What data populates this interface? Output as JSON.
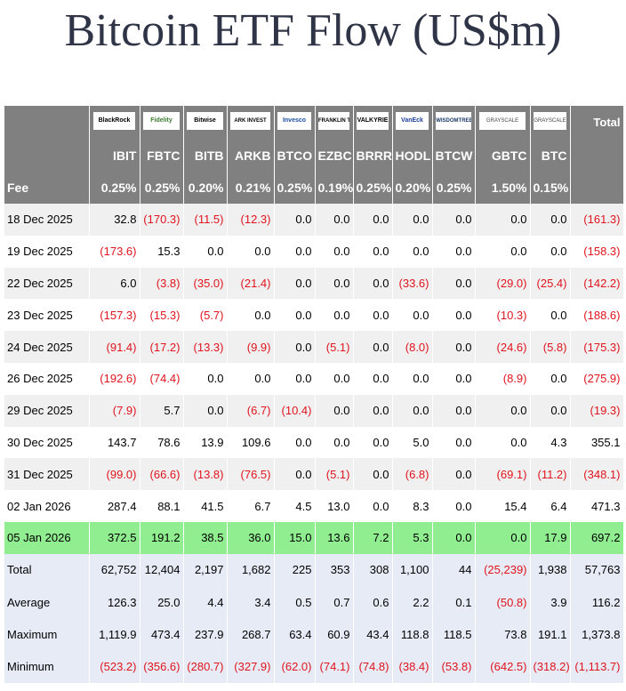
{
  "title": "Bitcoin ETF Flow (US$m)",
  "chart_data": {
    "type": "table",
    "title": "Bitcoin ETF Flow (US$m)",
    "issuers": [
      "BlackRock",
      "Fidelity",
      "Bitwise",
      "ARK INVEST",
      "Invesco",
      "FRANKLIN TEMPLETON",
      "VALKYRIE",
      "VanEck",
      "WISDOMTREE",
      "GRAYSCALE",
      "GRAYSCALE"
    ],
    "tickers": [
      "IBIT",
      "FBTC",
      "BITB",
      "ARKB",
      "BTCO",
      "EZBC",
      "BRRR",
      "HODL",
      "BTCW",
      "GBTC",
      "BTC"
    ],
    "total_label": "Total",
    "fee_label": "Fee",
    "fees": [
      "0.25%",
      "0.25%",
      "0.20%",
      "0.21%",
      "0.25%",
      "0.19%",
      "0.25%",
      "0.20%",
      "0.25%",
      "1.50%",
      "0.15%"
    ],
    "rows": [
      {
        "date": "18 Dec 2025",
        "values": [
          "32.8",
          "(170.3)",
          "(11.5)",
          "(12.3)",
          "0.0",
          "0.0",
          "0.0",
          "0.0",
          "0.0",
          "0.0",
          "0.0"
        ],
        "total": "(161.3)"
      },
      {
        "date": "19 Dec 2025",
        "values": [
          "(173.6)",
          "15.3",
          "0.0",
          "0.0",
          "0.0",
          "0.0",
          "0.0",
          "0.0",
          "0.0",
          "0.0",
          "0.0"
        ],
        "total": "(158.3)"
      },
      {
        "date": "22 Dec 2025",
        "values": [
          "6.0",
          "(3.8)",
          "(35.0)",
          "(21.4)",
          "0.0",
          "0.0",
          "0.0",
          "(33.6)",
          "0.0",
          "(29.0)",
          "(25.4)"
        ],
        "total": "(142.2)"
      },
      {
        "date": "23 Dec 2025",
        "values": [
          "(157.3)",
          "(15.3)",
          "(5.7)",
          "0.0",
          "0.0",
          "0.0",
          "0.0",
          "0.0",
          "0.0",
          "(10.3)",
          "0.0"
        ],
        "total": "(188.6)"
      },
      {
        "date": "24 Dec 2025",
        "values": [
          "(91.4)",
          "(17.2)",
          "(13.3)",
          "(9.9)",
          "0.0",
          "(5.1)",
          "0.0",
          "(8.0)",
          "0.0",
          "(24.6)",
          "(5.8)"
        ],
        "total": "(175.3)"
      },
      {
        "date": "26 Dec 2025",
        "values": [
          "(192.6)",
          "(74.4)",
          "0.0",
          "0.0",
          "0.0",
          "0.0",
          "0.0",
          "0.0",
          "0.0",
          "(8.9)",
          "0.0"
        ],
        "total": "(275.9)"
      },
      {
        "date": "29 Dec 2025",
        "values": [
          "(7.9)",
          "5.7",
          "0.0",
          "(6.7)",
          "(10.4)",
          "0.0",
          "0.0",
          "0.0",
          "0.0",
          "0.0",
          "0.0"
        ],
        "total": "(19.3)"
      },
      {
        "date": "30 Dec 2025",
        "values": [
          "143.7",
          "78.6",
          "13.9",
          "109.6",
          "0.0",
          "0.0",
          "0.0",
          "5.0",
          "0.0",
          "0.0",
          "4.3"
        ],
        "total": "355.1"
      },
      {
        "date": "31 Dec 2025",
        "values": [
          "(99.0)",
          "(66.6)",
          "(13.8)",
          "(76.5)",
          "0.0",
          "(5.1)",
          "0.0",
          "(6.8)",
          "0.0",
          "(69.1)",
          "(11.2)"
        ],
        "total": "(348.1)"
      },
      {
        "date": "02 Jan 2026",
        "values": [
          "287.4",
          "88.1",
          "41.5",
          "6.7",
          "4.5",
          "13.0",
          "0.0",
          "8.3",
          "0.0",
          "15.4",
          "6.4"
        ],
        "total": "471.3"
      },
      {
        "date": "05 Jan 2026",
        "values": [
          "372.5",
          "191.2",
          "38.5",
          "36.0",
          "15.0",
          "13.6",
          "7.2",
          "5.3",
          "0.0",
          "0.0",
          "17.9"
        ],
        "total": "697.2",
        "highlight": true
      }
    ],
    "summary": [
      {
        "label": "Total",
        "values": [
          "62,752",
          "12,404",
          "2,197",
          "1,682",
          "225",
          "353",
          "308",
          "1,100",
          "44",
          "(25,239)",
          "1,938"
        ],
        "total": "57,763"
      },
      {
        "label": "Average",
        "values": [
          "126.3",
          "25.0",
          "4.4",
          "3.4",
          "0.5",
          "0.7",
          "0.6",
          "2.2",
          "0.1",
          "(50.8)",
          "3.9"
        ],
        "total": "116.2"
      },
      {
        "label": "Maximum",
        "values": [
          "1,119.9",
          "473.4",
          "237.9",
          "268.7",
          "63.4",
          "60.9",
          "43.4",
          "118.8",
          "118.5",
          "73.8",
          "191.1"
        ],
        "total": "1,373.8"
      },
      {
        "label": "Minimum",
        "values": [
          "(523.2)",
          "(356.6)",
          "(280.7)",
          "(327.9)",
          "(62.0)",
          "(74.1)",
          "(74.8)",
          "(38.4)",
          "(53.8)",
          "(642.5)",
          "(318.2)"
        ],
        "total": "(1,113.7)"
      }
    ]
  },
  "colors": {
    "header_bg": "#808080",
    "negative": "#e0141e",
    "highlight_row": "#90ee90",
    "summary_bg": "#e6ebf6",
    "title": "#2f3447"
  }
}
